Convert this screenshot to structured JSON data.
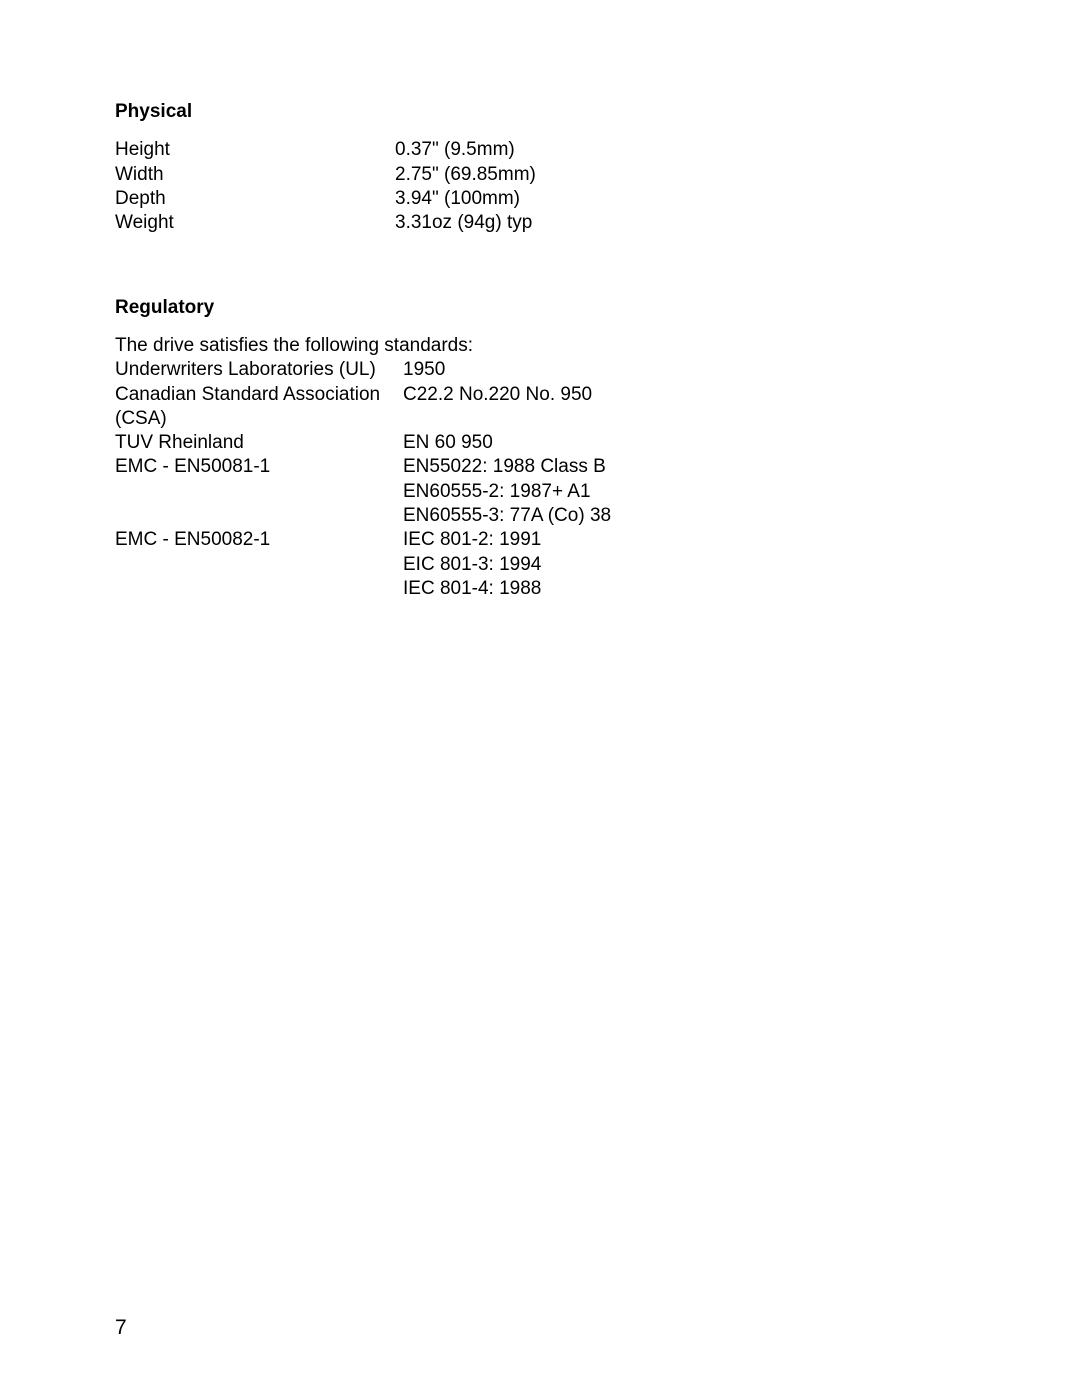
{
  "background_color": "#ffffff",
  "text_color": "#000000",
  "page_number": "7",
  "physical": {
    "heading": "Physical",
    "rows": [
      {
        "label": "Height",
        "value": "0.37\" (9.5mm)"
      },
      {
        "label": "Width",
        "value": "2.75\" (69.85mm)"
      },
      {
        "label": "Depth",
        "value": "3.94\" (100mm)"
      },
      {
        "label": "Weight",
        "value": "3.31oz (94g) typ"
      }
    ]
  },
  "regulatory": {
    "heading": "Regulatory",
    "intro": "The drive satisfies the following standards:",
    "rows": [
      {
        "label": "Underwriters Laboratories (UL)",
        "value": "1950"
      },
      {
        "label": "Canadian Standard Association (CSA)",
        "value": "C22.2 No.220 No. 950"
      },
      {
        "label": "TUV Rheinland",
        "value": "EN 60 950"
      },
      {
        "label": "EMC - EN50081-1",
        "value": "EN55022: 1988 Class B"
      },
      {
        "label": "",
        "value": "EN60555-2: 1987+ A1"
      },
      {
        "label": "",
        "value": "EN60555-3: 77A (Co) 38"
      },
      {
        "label": "EMC - EN50082-1",
        "value": "IEC 801-2: 1991"
      },
      {
        "label": "",
        "value": "EIC 801-3: 1994"
      },
      {
        "label": "",
        "value": "IEC 801-4: 1988"
      }
    ]
  }
}
